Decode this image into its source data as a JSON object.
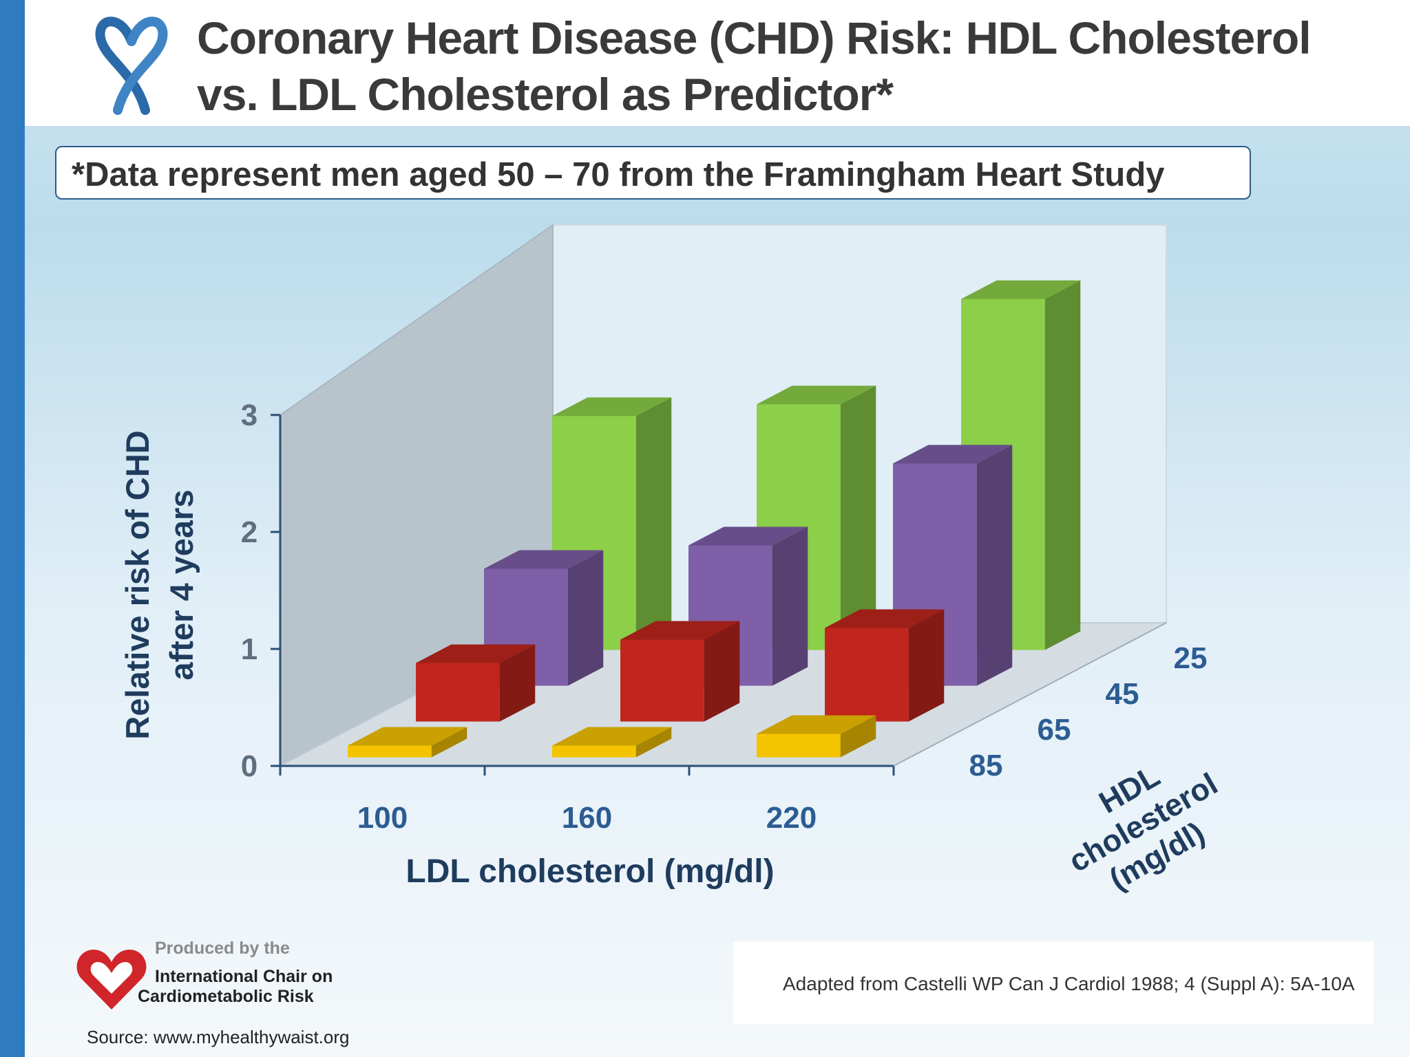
{
  "header": {
    "title": "Coronary Heart Disease (CHD) Risk: HDL Cholesterol vs. LDL Cholesterol as Predictor*",
    "note": "*Data represent men aged 50 – 70 from the Framingham Heart Study"
  },
  "colors": {
    "accent_bar": "#2f7bc0",
    "hdl_25": "#8ccf48",
    "hdl_45": "#7e5fa8",
    "hdl_65": "#c0261d",
    "hdl_85": "#f5c400"
  },
  "chart_data": {
    "type": "bar",
    "subtype": "3d-grouped",
    "xlabel": "LDL cholesterol (mg/dl)",
    "ylabel_lines": [
      "Relative risk of CHD",
      "after 4 years"
    ],
    "zlabel_lines": [
      "HDL",
      "cholesterol",
      "(mg/dl)"
    ],
    "categories": [
      "100",
      "160",
      "220"
    ],
    "yticks": [
      "0",
      "1",
      "2",
      "3"
    ],
    "ylim": [
      0,
      3
    ],
    "series": [
      {
        "name": "25",
        "values": [
          2.0,
          2.1,
          3.0
        ]
      },
      {
        "name": "45",
        "values": [
          1.0,
          1.2,
          1.9
        ]
      },
      {
        "name": "65",
        "values": [
          0.5,
          0.7,
          0.8
        ]
      },
      {
        "name": "85",
        "values": [
          0.1,
          0.1,
          0.2
        ]
      }
    ]
  },
  "footer": {
    "credit": "Adapted from Castelli WP Can J Cardiol 1988; 4 (Suppl A): 5A-10A",
    "produced_by": "Produced by the",
    "org_line1": "International Chair on",
    "org_line2": "Cardiometabolic Risk",
    "source": "Source: www.myhealthywaist.org"
  }
}
